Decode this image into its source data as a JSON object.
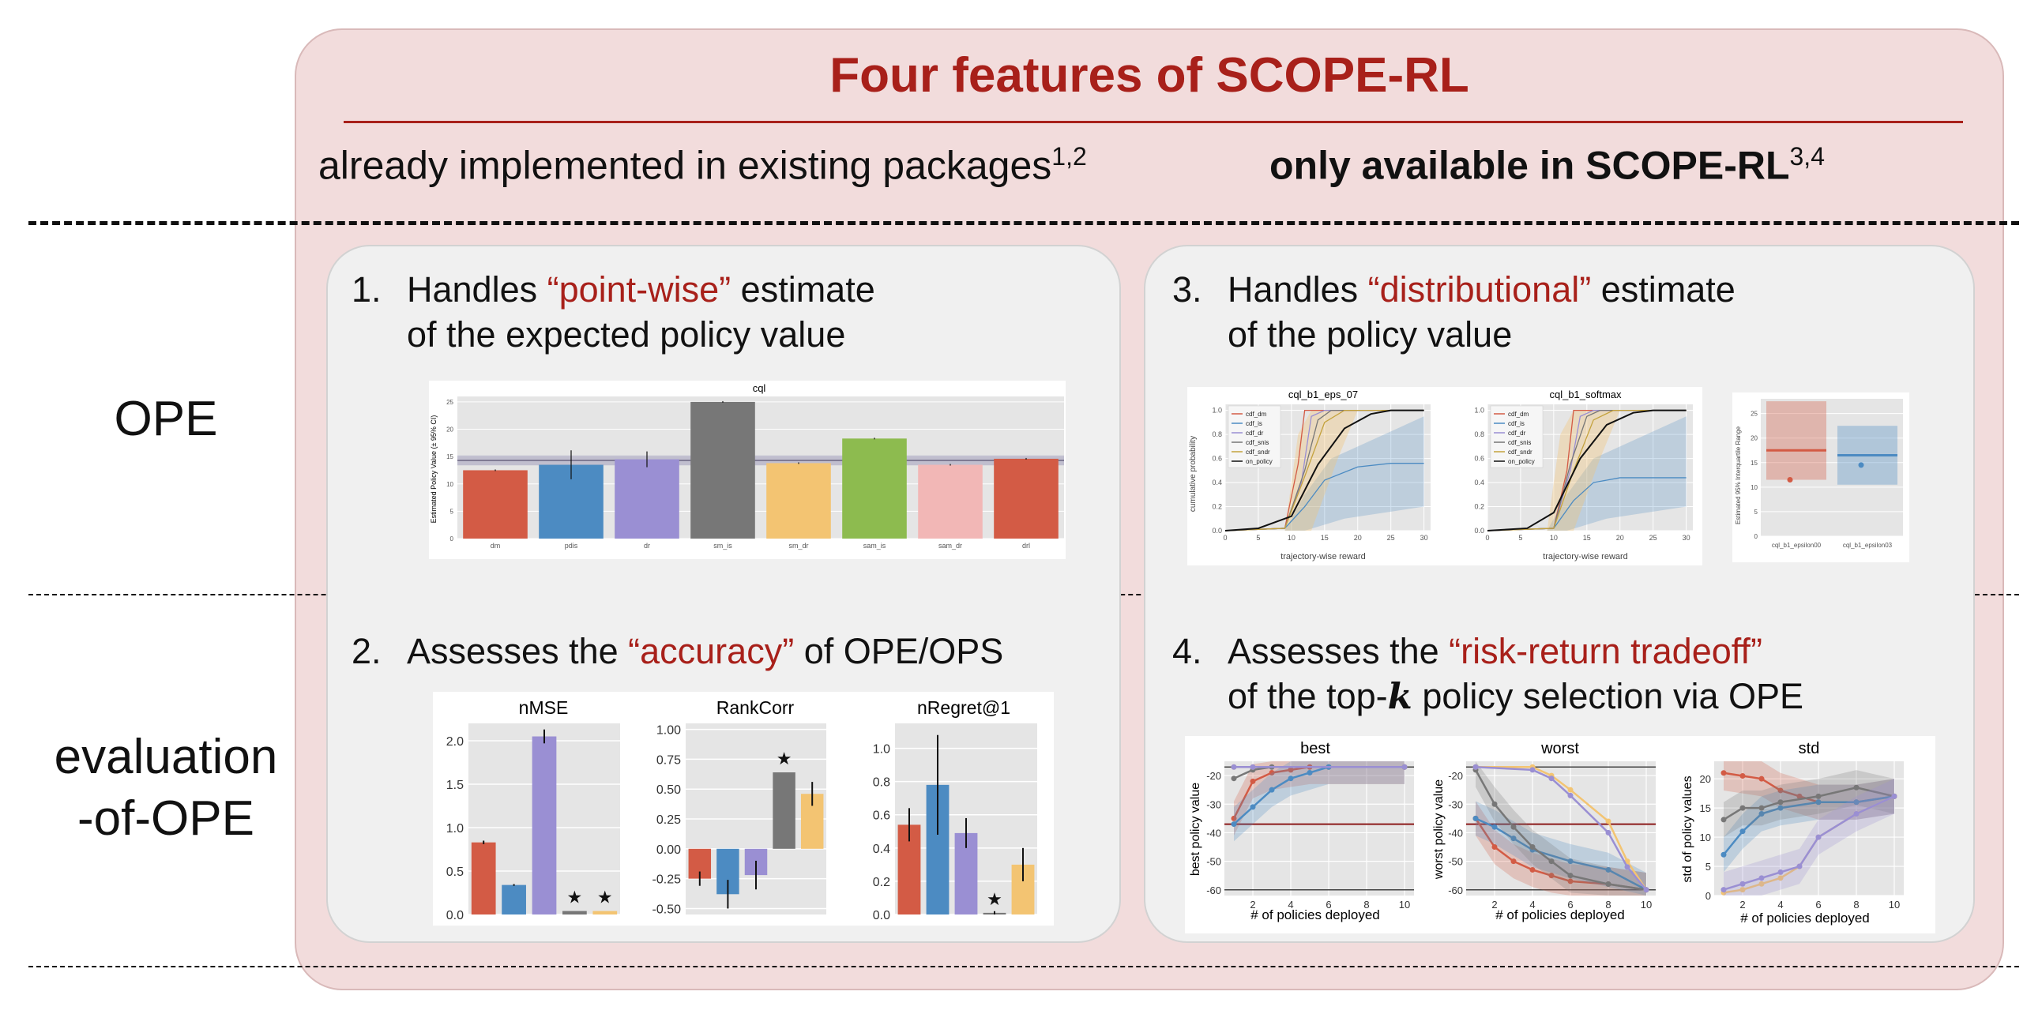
{
  "title": "Four features of SCOPE-RL",
  "headers": {
    "left": "already implemented in existing packages",
    "left_sup": "1,2",
    "right": "only available in SCOPE-RL",
    "right_sup": "3,4"
  },
  "rows": {
    "ope": "OPE",
    "eval_line1": "evaluation",
    "eval_line2": "-of-OPE"
  },
  "features": {
    "f1": {
      "num": "1.",
      "pre": "Handles ",
      "hl": "“point-wise”",
      "post": " estimate",
      "line2": "of the expected policy value"
    },
    "f2": {
      "num": "2.",
      "pre": "Assesses the ",
      "hl": "“accuracy”",
      "post": " of OPE/OPS"
    },
    "f3": {
      "num": "3.",
      "pre": "Handles ",
      "hl": "“distributional”",
      "post": " estimate",
      "line2": "of the policy value"
    },
    "f4": {
      "num": "4.",
      "pre": "Assesses the ",
      "hl": "“risk-return tradeoff”",
      "line2_pre": "of the top-",
      "line2_k": "k",
      "line2_post": " policy selection via OPE"
    }
  },
  "colors": {
    "accent": "#a8201a",
    "red": "#d35b45",
    "blue": "#4c8bc2",
    "purple": "#9a8fd3",
    "gray": "#777777",
    "yellow": "#f3c472",
    "green": "#8dbb4f",
    "pink": "#f2b7b6"
  },
  "chart_data": [
    {
      "id": "cql",
      "type": "bar",
      "title": "cql",
      "categories": [
        "dm",
        "pdis",
        "dr",
        "sm_is",
        "sm_dr",
        "sam_is",
        "sam_dr",
        "drl"
      ],
      "values": [
        12.5,
        13.5,
        14.5,
        25.0,
        13.8,
        18.3,
        13.5,
        14.6
      ],
      "errors": [
        0,
        2.5,
        1.3,
        0,
        0,
        0,
        0,
        0
      ],
      "colors": [
        "#d35b45",
        "#4c8bc2",
        "#9a8fd3",
        "#777777",
        "#f3c472",
        "#8dbb4f",
        "#f2b7b6",
        "#d35b45"
      ],
      "ylabel": "Estimated Policy Value (± 95% CI)",
      "ylim": [
        0,
        26
      ],
      "yticks": [
        0,
        5,
        10,
        15,
        20,
        25
      ],
      "reference": 14.3
    },
    {
      "id": "nmse",
      "type": "bar",
      "title": "nMSE",
      "values": [
        0.83,
        0.34,
        2.05,
        0.04,
        0.04
      ],
      "errors": [
        0.02,
        0.01,
        0.08,
        0,
        0
      ],
      "stars": [
        false,
        false,
        false,
        true,
        true
      ],
      "ylim": [
        0,
        2.2
      ],
      "yticks": [
        "0.0",
        "0.5",
        "1.0",
        "1.5",
        "2.0"
      ]
    },
    {
      "id": "rankcorr",
      "type": "bar",
      "title": "RankCorr",
      "values": [
        -0.25,
        -0.38,
        -0.22,
        0.64,
        0.46
      ],
      "errors": [
        0.06,
        0.12,
        0.12,
        0,
        0.1
      ],
      "stars": [
        false,
        false,
        false,
        true,
        false
      ],
      "ylim": [
        -0.55,
        1.05
      ],
      "yticks": [
        "-0.50",
        "-0.25",
        "0.00",
        "0.25",
        "0.50",
        "0.75",
        "1.00"
      ]
    },
    {
      "id": "nregret",
      "type": "bar",
      "title": "nRegret@1",
      "values": [
        0.54,
        0.78,
        0.49,
        0.01,
        0.3
      ],
      "errors": [
        0.1,
        0.3,
        0.09,
        0.01,
        0.1
      ],
      "stars": [
        false,
        false,
        false,
        true,
        false
      ],
      "ylim": [
        0,
        1.15
      ],
      "yticks": [
        "0.0",
        "0.2",
        "0.4",
        "0.6",
        "0.8",
        "1.0"
      ]
    },
    {
      "id": "cdf1",
      "type": "line",
      "title": "cql_b1_eps_07",
      "xlabel": "trajectory-wise reward",
      "ylabel": "cumulative probability",
      "xticks": [
        "0",
        "5",
        "10",
        "15",
        "20",
        "25",
        "30"
      ],
      "yticks": [
        "0.0",
        "0.2",
        "0.4",
        "0.6",
        "0.8",
        "1.0"
      ],
      "legend": [
        "cdf_dm",
        "cdf_is",
        "cdf_dr",
        "cdf_snis",
        "cdf_sndr",
        "on_policy"
      ]
    },
    {
      "id": "cdf2",
      "type": "line",
      "title": "cql_b1_softmax",
      "xlabel": "trajectory-wise reward",
      "xticks": [
        "0",
        "5",
        "10",
        "15",
        "20",
        "25",
        "30"
      ],
      "yticks": [
        "0.0",
        "0.2",
        "0.4",
        "0.6",
        "0.8",
        "1.0"
      ],
      "legend": [
        "cdf_dm",
        "cdf_is",
        "cdf_dr",
        "cdf_snis",
        "cdf_sndr",
        "on_policy"
      ]
    },
    {
      "id": "iqr",
      "type": "bar",
      "ylabel": "Estimated 95% Interquartile Range",
      "categories": [
        "cql_b1_epsilon00",
        "cql_b1_epsilon03"
      ],
      "yticks": [
        "0",
        "5",
        "10",
        "15",
        "20",
        "25"
      ]
    },
    {
      "id": "best",
      "type": "line",
      "title": "best",
      "xlabel": "# of policies deployed",
      "ylabel": "best policy value",
      "xticks": [
        "2",
        "4",
        "6",
        "8",
        "10"
      ],
      "yticks": [
        "-20",
        "-30",
        "-40",
        "-50",
        "-60"
      ]
    },
    {
      "id": "worst",
      "type": "line",
      "title": "worst",
      "xlabel": "# of policies deployed",
      "ylabel": "worst policy value",
      "xticks": [
        "2",
        "4",
        "6",
        "8",
        "10"
      ],
      "yticks": [
        "-20",
        "-30",
        "-40",
        "-50",
        "-60"
      ]
    },
    {
      "id": "std",
      "type": "line",
      "title": "std",
      "xlabel": "# of policies deployed",
      "ylabel": "std of policy values",
      "xticks": [
        "2",
        "4",
        "6",
        "8",
        "10"
      ],
      "yticks": [
        "0",
        "5",
        "10",
        "15",
        "20"
      ]
    }
  ]
}
